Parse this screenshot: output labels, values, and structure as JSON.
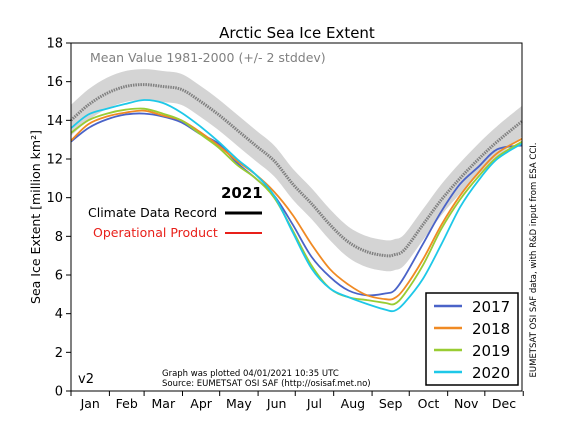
{
  "chart_data": {
    "type": "line",
    "title": "Arctic Sea Ice Extent",
    "ylabel": "Sea Ice Extent [million km²]",
    "xlabel": "",
    "ylim": [
      0,
      18
    ],
    "y_ticks": [
      0,
      2,
      4,
      6,
      8,
      10,
      12,
      14,
      16,
      18
    ],
    "month_labels": [
      "Jan",
      "Feb",
      "Mar",
      "Apr",
      "May",
      "Jun",
      "Jul",
      "Aug",
      "Sep",
      "Oct",
      "Nov",
      "Dec"
    ],
    "grid": false,
    "mean_label": "Mean Value 1981-2000 (+/- 2 stddev)",
    "x_points": [
      1,
      15,
      30,
      45,
      60,
      75,
      90,
      105,
      120,
      135,
      150,
      165,
      180,
      195,
      210,
      225,
      240,
      255,
      262,
      270,
      285,
      300,
      315,
      330,
      345,
      365
    ],
    "mean": {
      "color": "#808080",
      "band_color": "#d4d4d4",
      "values": [
        14.0,
        14.8,
        15.4,
        15.75,
        15.85,
        15.75,
        15.6,
        15.0,
        14.3,
        13.5,
        12.7,
        11.9,
        10.7,
        9.7,
        8.6,
        7.7,
        7.2,
        7.0,
        7.05,
        7.3,
        8.6,
        9.9,
        11.0,
        12.0,
        12.9,
        13.95
      ],
      "band_width": 0.8
    },
    "series": [
      {
        "name": "2017",
        "color": "#4a63c8",
        "values": [
          12.9,
          13.6,
          14.05,
          14.3,
          14.35,
          14.2,
          13.9,
          13.3,
          12.8,
          11.8,
          11.0,
          10.1,
          8.6,
          6.95,
          5.9,
          5.2,
          4.95,
          5.05,
          5.2,
          5.9,
          7.6,
          9.3,
          10.7,
          11.6,
          12.5,
          12.7
        ]
      },
      {
        "name": "2018",
        "color": "#f08a24",
        "values": [
          12.95,
          13.8,
          14.2,
          14.4,
          14.5,
          14.25,
          14.0,
          13.4,
          12.7,
          11.9,
          11.2,
          10.3,
          9.1,
          7.6,
          6.3,
          5.5,
          4.95,
          4.75,
          4.8,
          5.3,
          6.8,
          8.6,
          10.1,
          11.3,
          12.3,
          13.05
        ]
      },
      {
        "name": "2019",
        "color": "#99cc33",
        "values": [
          13.35,
          14.0,
          14.35,
          14.55,
          14.6,
          14.35,
          14.0,
          13.3,
          12.6,
          11.7,
          11.0,
          10.0,
          8.3,
          6.5,
          5.3,
          4.85,
          4.7,
          4.55,
          4.5,
          5.0,
          6.5,
          8.4,
          9.9,
          11.1,
          12.1,
          12.9
        ]
      },
      {
        "name": "2020",
        "color": "#1ec8e8",
        "values": [
          13.6,
          14.3,
          14.6,
          14.85,
          15.05,
          14.9,
          14.4,
          13.7,
          12.9,
          12.0,
          11.2,
          10.1,
          8.2,
          6.35,
          5.3,
          4.85,
          4.5,
          4.2,
          4.15,
          4.55,
          5.8,
          7.6,
          9.5,
          10.9,
          12.0,
          12.8
        ]
      }
    ],
    "legend": {
      "placement": "bottom-right",
      "entries": [
        "2017",
        "2018",
        "2019",
        "2020"
      ]
    },
    "year_label": "2021",
    "climate_label": "Climate Data Record",
    "operational_label": "Operational Product",
    "climate_color": "#000000",
    "operational_color": "#e8201a",
    "version_label": "v2",
    "plotted_text": "Graph was plotted 04/01/2021 10:35 UTC",
    "source_text": "Source: EUMETSAT OSI SAF (http://osisaf.met.no)",
    "side_text": "EUMETSAT OSI SAF data, with R&D input from ESA CCI."
  }
}
